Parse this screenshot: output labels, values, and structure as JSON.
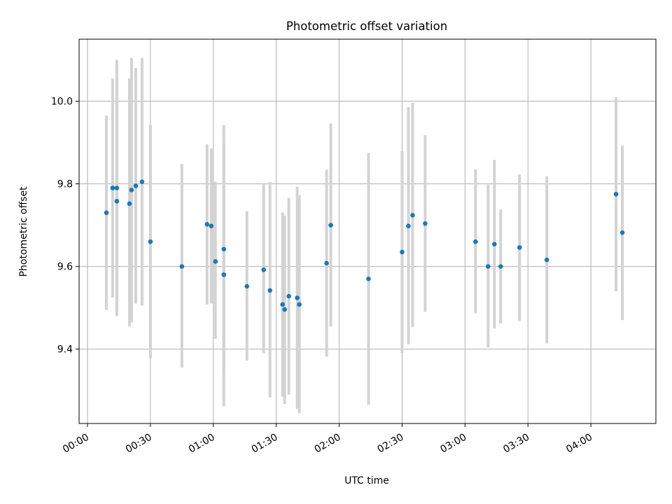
{
  "chart_data": {
    "type": "scatter",
    "title": "Photometric offset variation",
    "xlabel": "UTC time",
    "ylabel": "Photometric offset",
    "x_unit": "UTC time (HH:MM)",
    "xlim": [
      "-00:04",
      "04:31"
    ],
    "ylim": [
      9.22,
      10.15
    ],
    "x_ticks": [
      "00:00",
      "00:30",
      "01:00",
      "01:30",
      "02:00",
      "02:30",
      "03:00",
      "03:30",
      "04:00"
    ],
    "y_ticks": [
      9.4,
      9.6,
      9.8,
      10.0
    ],
    "y_tick_labels": [
      "9.4",
      "9.6",
      "9.8",
      "10.0"
    ],
    "grid": true,
    "series": [
      {
        "marker_color": "#1f77b4",
        "errorbar_color": "#d3d3d3",
        "points": [
          {
            "x": "00:09",
            "y": 9.73,
            "ylow": 9.495,
            "yhigh": 9.965
          },
          {
            "x": "00:12",
            "y": 9.79,
            "ylow": 9.525,
            "yhigh": 10.055
          },
          {
            "x": "00:14",
            "y": 9.758,
            "ylow": 9.48,
            "yhigh": 10.1
          },
          {
            "x": "00:14",
            "y": 9.79,
            "ylow": 9.48,
            "yhigh": 10.1
          },
          {
            "x": "00:20",
            "y": 9.752,
            "ylow": 9.455,
            "yhigh": 10.055
          },
          {
            "x": "00:21",
            "y": 9.785,
            "ylow": 9.465,
            "yhigh": 10.105
          },
          {
            "x": "00:23",
            "y": 9.795,
            "ylow": 9.51,
            "yhigh": 10.08
          },
          {
            "x": "00:26",
            "y": 9.805,
            "ylow": 9.505,
            "yhigh": 10.105
          },
          {
            "x": "00:30",
            "y": 9.66,
            "ylow": 9.378,
            "yhigh": 9.942
          },
          {
            "x": "00:45",
            "y": 9.6,
            "ylow": 9.355,
            "yhigh": 9.848
          },
          {
            "x": "00:57",
            "y": 9.702,
            "ylow": 9.508,
            "yhigh": 9.896
          },
          {
            "x": "00:59",
            "y": 9.698,
            "ylow": 9.51,
            "yhigh": 9.886
          },
          {
            "x": "01:01",
            "y": 9.612,
            "ylow": 9.425,
            "yhigh": 9.805
          },
          {
            "x": "01:05",
            "y": 9.642,
            "ylow": 9.34,
            "yhigh": 9.942
          },
          {
            "x": "01:05",
            "y": 9.58,
            "ylow": 9.262,
            "yhigh": 9.9
          },
          {
            "x": "01:16",
            "y": 9.552,
            "ylow": 9.372,
            "yhigh": 9.734
          },
          {
            "x": "01:24",
            "y": 9.592,
            "ylow": 9.39,
            "yhigh": 9.8
          },
          {
            "x": "01:27",
            "y": 9.542,
            "ylow": 9.283,
            "yhigh": 9.804
          },
          {
            "x": "01:33",
            "y": 9.508,
            "ylow": 9.285,
            "yhigh": 9.731
          },
          {
            "x": "01:34",
            "y": 9.496,
            "ylow": 9.267,
            "yhigh": 9.723
          },
          {
            "x": "01:36",
            "y": 9.528,
            "ylow": 9.29,
            "yhigh": 9.766
          },
          {
            "x": "01:40",
            "y": 9.524,
            "ylow": 9.255,
            "yhigh": 9.793
          },
          {
            "x": "01:41",
            "y": 9.508,
            "ylow": 9.245,
            "yhigh": 9.772
          },
          {
            "x": "01:54",
            "y": 9.608,
            "ylow": 9.382,
            "yhigh": 9.834
          },
          {
            "x": "01:56",
            "y": 9.7,
            "ylow": 9.455,
            "yhigh": 9.946
          },
          {
            "x": "02:14",
            "y": 9.57,
            "ylow": 9.265,
            "yhigh": 9.875
          },
          {
            "x": "02:30",
            "y": 9.635,
            "ylow": 9.39,
            "yhigh": 9.88
          },
          {
            "x": "02:33",
            "y": 9.698,
            "ylow": 9.412,
            "yhigh": 9.986
          },
          {
            "x": "02:35",
            "y": 9.724,
            "ylow": 9.453,
            "yhigh": 9.996
          },
          {
            "x": "02:41",
            "y": 9.704,
            "ylow": 9.49,
            "yhigh": 9.918
          },
          {
            "x": "03:05",
            "y": 9.66,
            "ylow": 9.487,
            "yhigh": 9.835
          },
          {
            "x": "03:11",
            "y": 9.6,
            "ylow": 9.404,
            "yhigh": 9.798
          },
          {
            "x": "03:14",
            "y": 9.654,
            "ylow": 9.45,
            "yhigh": 9.858
          },
          {
            "x": "03:17",
            "y": 9.6,
            "ylow": 9.462,
            "yhigh": 9.738
          },
          {
            "x": "03:26",
            "y": 9.646,
            "ylow": 9.468,
            "yhigh": 9.823
          },
          {
            "x": "03:39",
            "y": 9.616,
            "ylow": 9.414,
            "yhigh": 9.818
          },
          {
            "x": "04:12",
            "y": 9.775,
            "ylow": 9.54,
            "yhigh": 10.01
          },
          {
            "x": "04:15",
            "y": 9.682,
            "ylow": 9.47,
            "yhigh": 9.892
          }
        ]
      }
    ]
  }
}
